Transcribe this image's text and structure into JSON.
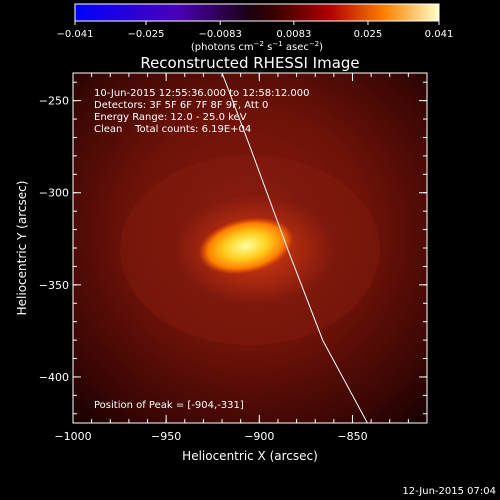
{
  "colorbar": {
    "ticks": [
      "−0.041",
      "−0.025",
      "−0.0083",
      "0.0083",
      "0.025",
      "0.041"
    ],
    "units_main": "(photons cm",
    "units_sup1": "−2",
    "units_mid1": " s",
    "units_sup2": "−1",
    "units_mid2": " asec",
    "units_sup3": "−2",
    "units_end": ")"
  },
  "chart_data": {
    "type": "heatmap",
    "title": "Reconstructed RHESSI Image",
    "xlabel": "Heliocentric X (arcsec)",
    "ylabel": "Heliocentric Y (arcsec)",
    "xlim": [
      -1000,
      -810
    ],
    "ylim": [
      -425,
      -235
    ],
    "x_ticks": [
      -1000,
      -950,
      -900,
      -850
    ],
    "y_ticks": [
      -250,
      -300,
      -350,
      -400
    ],
    "x_tick_labels": [
      "−1000",
      "−950",
      "−900",
      "−850"
    ],
    "y_tick_labels": [
      "−250",
      "−300",
      "−350",
      "−400"
    ],
    "value_range": [
      -0.041,
      0.041
    ],
    "peak": [
      -904,
      -331
    ],
    "annotations": [
      "10-Jun-2015 12:55:36.000 to 12:58:12.000",
      "Detectors: 3F 5F 6F 7F 8F 9F, Att 0",
      "Energy Range: 12.0 - 25.0 keV",
      "Clean    Total counts: 6.19E+04"
    ],
    "peak_label": "Position of Peak = [-904,-331]",
    "limb_curve": [
      [
        -920,
        -235
      ],
      [
        -905,
        -275
      ],
      [
        -885,
        -330
      ],
      [
        -866,
        -380
      ],
      [
        -842,
        -425
      ]
    ]
  },
  "footer": {
    "date": "12-Jun-2015 07:04"
  }
}
